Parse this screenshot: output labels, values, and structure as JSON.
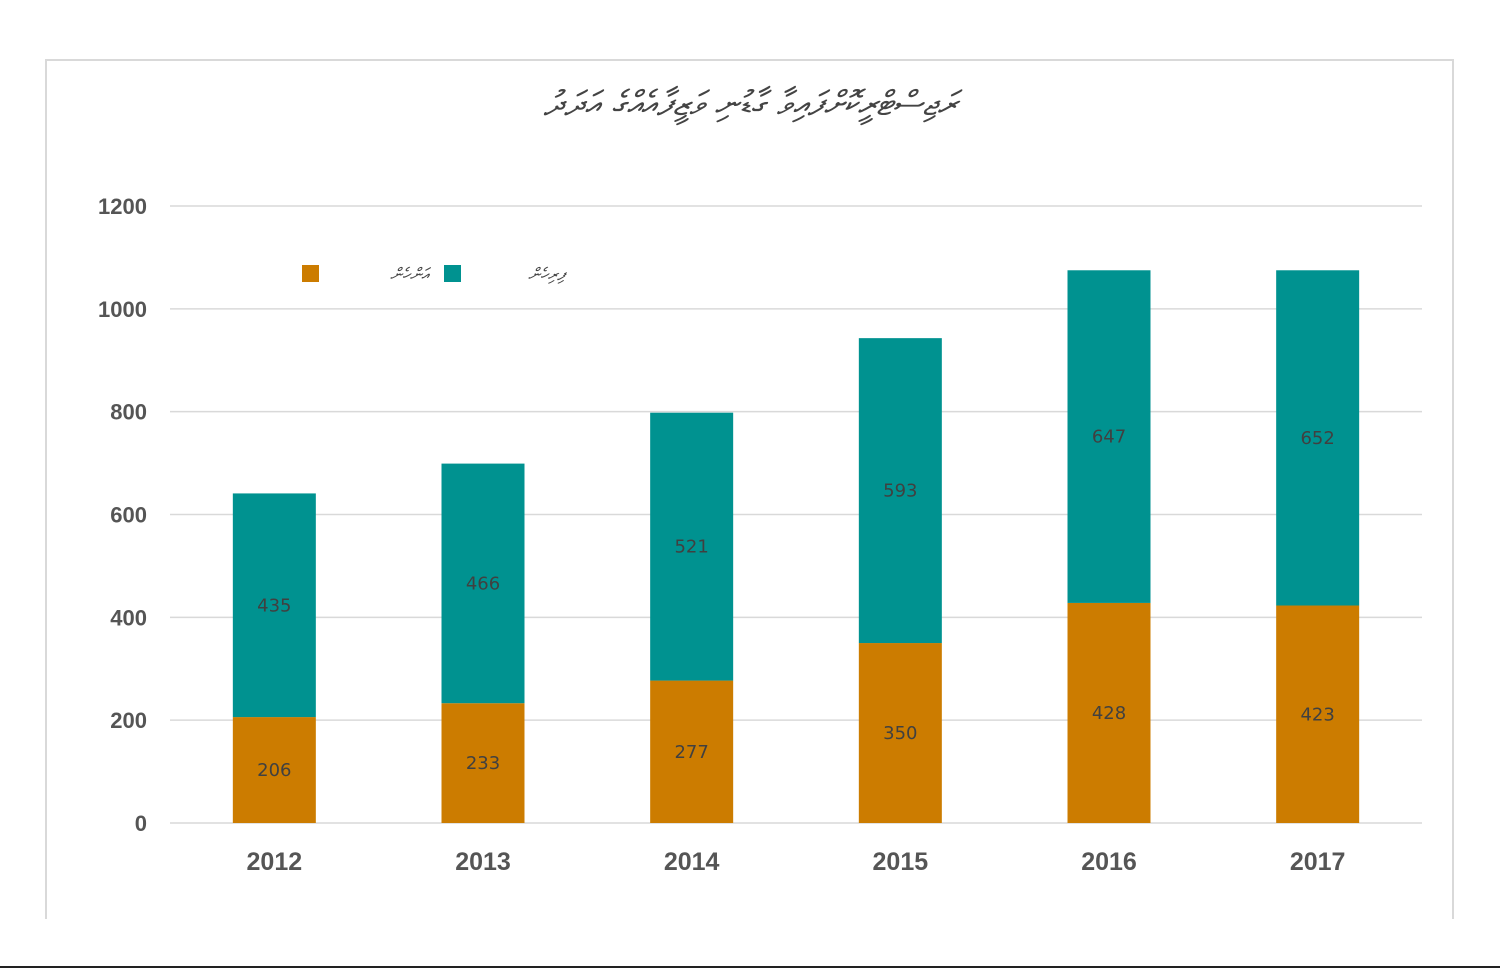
{
  "chart_data": {
    "type": "bar",
    "stacked": true,
    "title": "ރަޖިސްޓްރީކޮށްފައިވާ ގާޑުނި ވަޒީފާއެއްގެ އަދަދު",
    "categories": [
      "2012",
      "2013",
      "2014",
      "2015",
      "2016",
      "2017"
    ],
    "series": [
      {
        "name": "އަންހެން",
        "color": "#cc7c00",
        "values": [
          206,
          233,
          277,
          350,
          428,
          423
        ]
      },
      {
        "name": "ފިރިހެން",
        "color": "#009290",
        "values": [
          435,
          466,
          521,
          593,
          647,
          652
        ]
      }
    ],
    "ylim": [
      0,
      1200
    ],
    "yticks": [
      "0",
      "200",
      "400",
      "600",
      "800",
      "1000",
      "1200"
    ],
    "grid": true,
    "legend_position": "top-left",
    "xlabel": "",
    "ylabel": ""
  }
}
